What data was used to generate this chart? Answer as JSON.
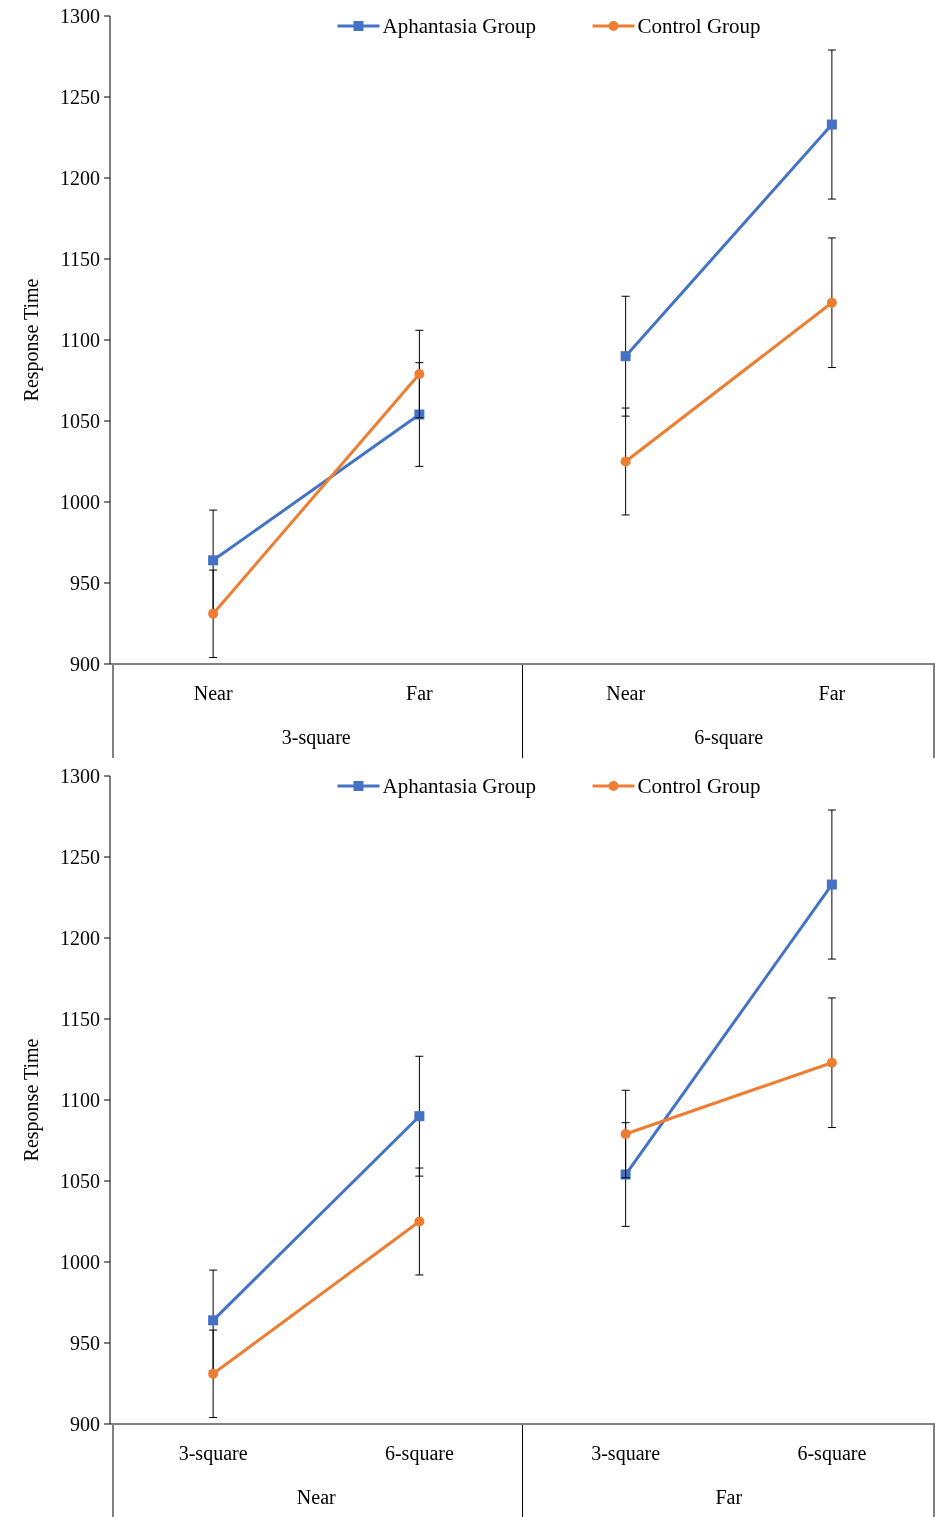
{
  "chart_data": [
    {
      "type": "line",
      "ylabel": "Response Time",
      "categories": [
        "Near",
        "Far",
        "Near",
        "Far"
      ],
      "annotations": [
        "3-square",
        "6-square"
      ],
      "ylim": [
        900,
        1300
      ],
      "yticks": [
        900,
        950,
        1000,
        1050,
        1100,
        1150,
        1200,
        1250,
        1300
      ],
      "grid": false,
      "legend": "top",
      "series": [
        {
          "name": "Aphantasia Group",
          "color": "#4472c4",
          "marker": "square",
          "values": [
            964,
            1054,
            null,
            null
          ],
          "errors": [
            31,
            32,
            null,
            null
          ]
        },
        {
          "name": "Control Group",
          "color": "#ed7d31",
          "marker": "circle",
          "values": [
            931,
            1079,
            null,
            null
          ],
          "errors": [
            27,
            27,
            null,
            null
          ]
        },
        {
          "color": "#4472c4",
          "marker": "square",
          "values": [
            null,
            null,
            1090,
            1233
          ],
          "errors": [
            null,
            null,
            37,
            46
          ]
        },
        {
          "color": "#ed7d31",
          "marker": "circle",
          "values": [
            null,
            null,
            1025,
            1123
          ],
          "errors": [
            null,
            null,
            33,
            40
          ]
        }
      ]
    },
    {
      "type": "line",
      "ylabel": "Response Time",
      "categories": [
        "3-square",
        "6-square",
        "3-square",
        "6-square"
      ],
      "annotations": [
        "Near",
        "Far"
      ],
      "ylim": [
        900,
        1300
      ],
      "yticks": [
        900,
        950,
        1000,
        1050,
        1100,
        1150,
        1200,
        1250,
        1300
      ],
      "grid": false,
      "legend": "top",
      "series": [
        {
          "name": "Aphantasia Group",
          "color": "#4472c4",
          "marker": "square",
          "values": [
            964,
            1090,
            null,
            null
          ],
          "errors": [
            31,
            37,
            null,
            null
          ]
        },
        {
          "name": "Control Group",
          "color": "#ed7d31",
          "marker": "circle",
          "values": [
            931,
            1025,
            null,
            null
          ],
          "errors": [
            27,
            33,
            null,
            null
          ]
        },
        {
          "color": "#4472c4",
          "marker": "square",
          "values": [
            null,
            null,
            1054,
            1233
          ],
          "errors": [
            null,
            null,
            32,
            46
          ]
        },
        {
          "color": "#ed7d31",
          "marker": "circle",
          "values": [
            null,
            null,
            1079,
            1123
          ],
          "errors": [
            null,
            null,
            27,
            40
          ]
        }
      ]
    }
  ]
}
